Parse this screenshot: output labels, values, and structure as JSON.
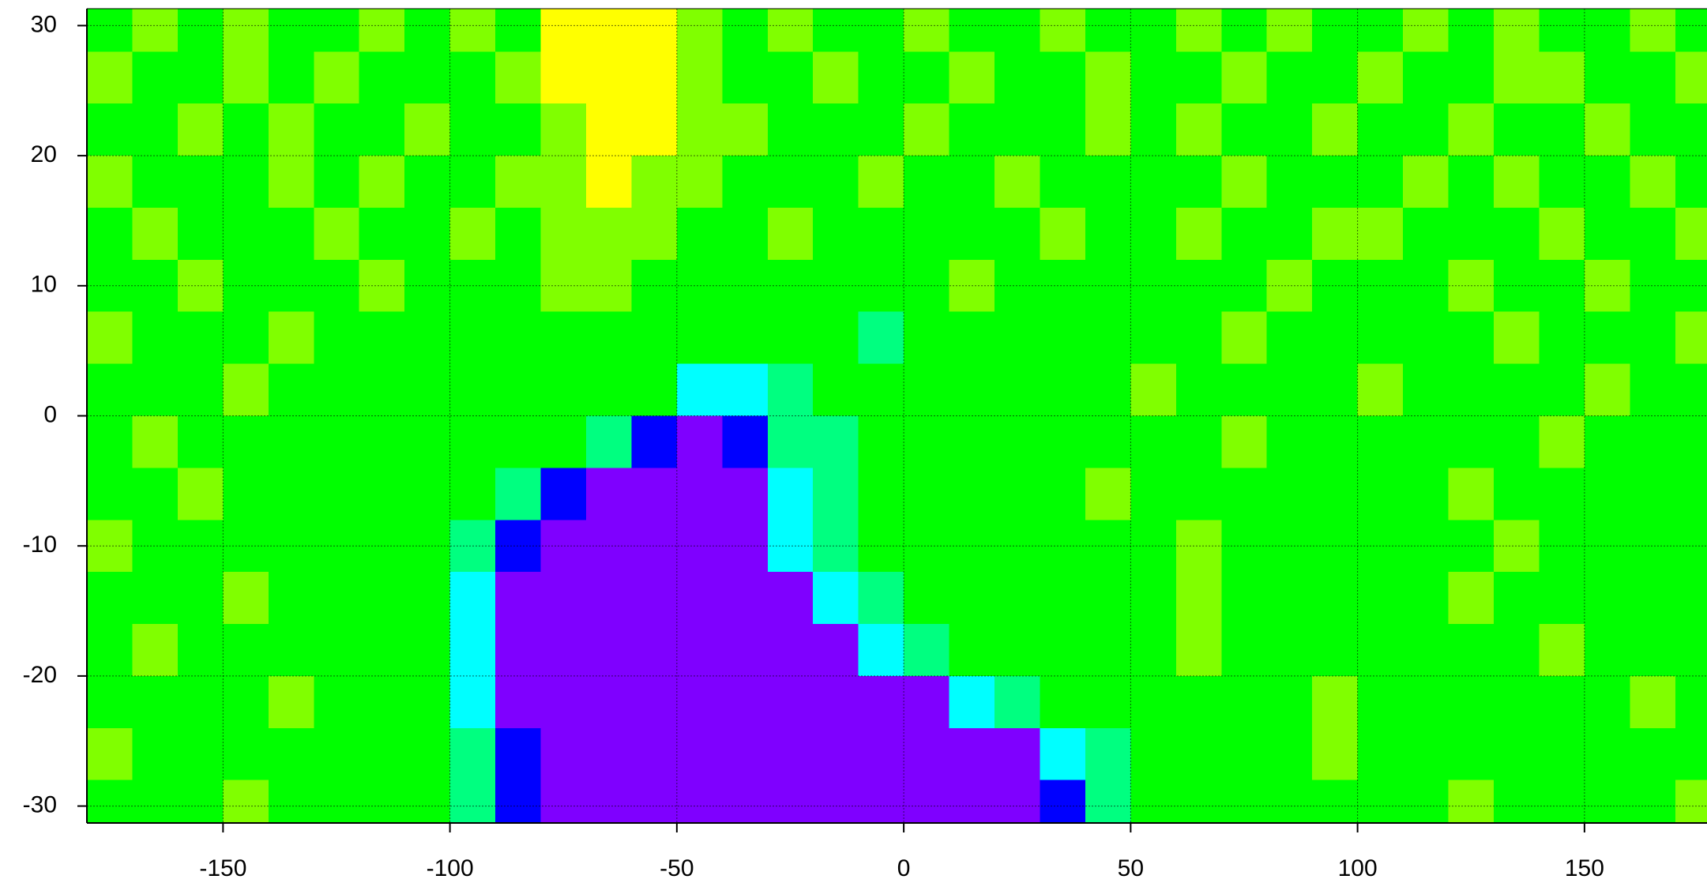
{
  "chart_data": {
    "type": "heatmap",
    "x_edges": [
      -180,
      -170,
      -160,
      -150,
      -140,
      -130,
      -120,
      -110,
      -100,
      -90,
      -80,
      -70,
      -60,
      -50,
      -40,
      -30,
      -20,
      -10,
      0,
      10,
      20,
      30,
      40,
      50,
      60,
      70,
      80,
      90,
      100,
      110,
      120,
      130,
      140,
      150,
      160,
      170,
      180
    ],
    "y_edges": [
      32,
      28,
      24,
      20,
      16,
      12,
      8,
      4,
      0,
      -4,
      -8,
      -12,
      -16,
      -20,
      -24,
      -28,
      -32
    ],
    "colors": [
      "#7f00ff",
      "#0000ff",
      "#00ffff",
      "#00ff80",
      "#00ff00",
      "#80ff00",
      "#ffff00"
    ],
    "z": [
      [
        4,
        5,
        4,
        5,
        4,
        4,
        5,
        4,
        5,
        4,
        6,
        6,
        6,
        5,
        4,
        5,
        4,
        4,
        5,
        4,
        4,
        5,
        4,
        4,
        5,
        4,
        5,
        4,
        4,
        5,
        4,
        5,
        4,
        4,
        5,
        4
      ],
      [
        5,
        4,
        4,
        5,
        4,
        5,
        4,
        4,
        4,
        5,
        6,
        6,
        6,
        5,
        4,
        4,
        5,
        4,
        4,
        5,
        4,
        4,
        5,
        4,
        4,
        5,
        4,
        4,
        5,
        4,
        4,
        5,
        5,
        4,
        4,
        5
      ],
      [
        4,
        4,
        5,
        4,
        5,
        4,
        4,
        5,
        4,
        4,
        5,
        6,
        6,
        5,
        5,
        4,
        4,
        4,
        5,
        4,
        4,
        4,
        5,
        4,
        5,
        4,
        4,
        5,
        4,
        4,
        5,
        4,
        4,
        5,
        4,
        4
      ],
      [
        5,
        4,
        4,
        4,
        5,
        4,
        5,
        4,
        4,
        5,
        5,
        6,
        5,
        5,
        4,
        4,
        4,
        5,
        4,
        4,
        5,
        4,
        4,
        4,
        4,
        5,
        4,
        4,
        4,
        5,
        4,
        5,
        4,
        4,
        5,
        4
      ],
      [
        4,
        5,
        4,
        4,
        4,
        5,
        4,
        4,
        5,
        4,
        5,
        5,
        5,
        4,
        4,
        5,
        4,
        4,
        4,
        4,
        4,
        5,
        4,
        4,
        5,
        4,
        4,
        5,
        5,
        4,
        4,
        4,
        5,
        4,
        4,
        5
      ],
      [
        4,
        4,
        5,
        4,
        4,
        4,
        5,
        4,
        4,
        4,
        5,
        5,
        4,
        4,
        4,
        4,
        4,
        4,
        4,
        5,
        4,
        4,
        4,
        4,
        4,
        4,
        5,
        4,
        4,
        4,
        5,
        4,
        4,
        5,
        4,
        4
      ],
      [
        5,
        4,
        4,
        4,
        5,
        4,
        4,
        4,
        4,
        4,
        4,
        4,
        4,
        4,
        4,
        4,
        4,
        3,
        4,
        4,
        4,
        4,
        4,
        4,
        4,
        5,
        4,
        4,
        4,
        4,
        4,
        5,
        4,
        4,
        4,
        5
      ],
      [
        4,
        4,
        4,
        5,
        4,
        4,
        4,
        4,
        4,
        4,
        4,
        4,
        4,
        2,
        2,
        3,
        4,
        4,
        4,
        4,
        4,
        4,
        4,
        5,
        4,
        4,
        4,
        4,
        5,
        4,
        4,
        4,
        4,
        5,
        4,
        4
      ],
      [
        4,
        5,
        4,
        4,
        4,
        4,
        4,
        4,
        4,
        4,
        4,
        3,
        1,
        0,
        1,
        3,
        3,
        4,
        4,
        4,
        4,
        4,
        4,
        4,
        4,
        5,
        4,
        4,
        4,
        4,
        4,
        4,
        5,
        4,
        4,
        4
      ],
      [
        4,
        4,
        5,
        4,
        4,
        4,
        4,
        4,
        4,
        3,
        1,
        0,
        0,
        0,
        0,
        2,
        3,
        4,
        4,
        4,
        4,
        4,
        5,
        4,
        4,
        4,
        4,
        4,
        4,
        4,
        5,
        4,
        4,
        4,
        4,
        4
      ],
      [
        5,
        4,
        4,
        4,
        4,
        4,
        4,
        4,
        3,
        1,
        0,
        0,
        0,
        0,
        0,
        2,
        3,
        4,
        4,
        4,
        4,
        4,
        4,
        4,
        5,
        4,
        4,
        4,
        4,
        4,
        4,
        5,
        4,
        4,
        4,
        4
      ],
      [
        4,
        4,
        4,
        5,
        4,
        4,
        4,
        4,
        2,
        0,
        0,
        0,
        0,
        0,
        0,
        0,
        2,
        3,
        4,
        4,
        4,
        4,
        4,
        4,
        5,
        4,
        4,
        4,
        4,
        4,
        5,
        4,
        4,
        4,
        4,
        4
      ],
      [
        4,
        5,
        4,
        4,
        4,
        4,
        4,
        4,
        2,
        0,
        0,
        0,
        0,
        0,
        0,
        0,
        0,
        2,
        3,
        4,
        4,
        4,
        4,
        4,
        5,
        4,
        4,
        4,
        4,
        4,
        4,
        4,
        5,
        4,
        4,
        4
      ],
      [
        4,
        4,
        4,
        4,
        5,
        4,
        4,
        4,
        2,
        0,
        0,
        0,
        0,
        0,
        0,
        0,
        0,
        0,
        0,
        2,
        3,
        4,
        4,
        4,
        4,
        4,
        4,
        5,
        4,
        4,
        4,
        4,
        4,
        4,
        5,
        4
      ],
      [
        5,
        4,
        4,
        4,
        4,
        4,
        4,
        4,
        3,
        1,
        0,
        0,
        0,
        0,
        0,
        0,
        0,
        0,
        0,
        0,
        0,
        2,
        3,
        4,
        4,
        4,
        4,
        5,
        4,
        4,
        4,
        4,
        4,
        4,
        4,
        4
      ],
      [
        4,
        4,
        4,
        5,
        4,
        4,
        4,
        4,
        3,
        1,
        0,
        0,
        0,
        0,
        0,
        0,
        0,
        0,
        0,
        0,
        0,
        1,
        3,
        4,
        4,
        4,
        4,
        4,
        4,
        4,
        5,
        4,
        4,
        4,
        4,
        5
      ]
    ],
    "xlim": [
      -180,
      177
    ],
    "ylim": [
      -31.3,
      31.3
    ],
    "xticks": [
      -150,
      -100,
      -50,
      0,
      50,
      100,
      150
    ],
    "yticks": [
      -30,
      -20,
      -10,
      0,
      10,
      20,
      30
    ],
    "grid": true
  }
}
